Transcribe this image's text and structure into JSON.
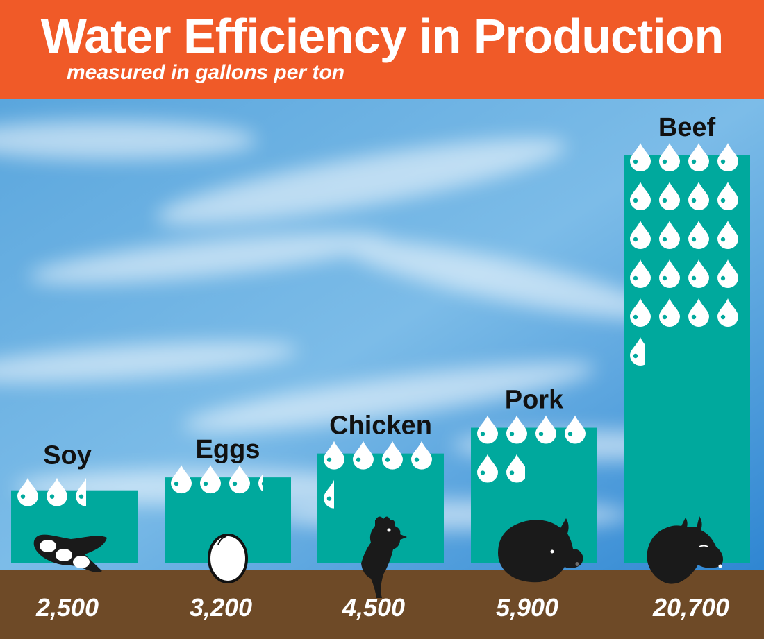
{
  "header": {
    "title": "Water Efficiency in Production",
    "subtitle": "measured in gallons per ton"
  },
  "colors": {
    "header_bg": "#f05a28",
    "bar": "#00a99d",
    "ground": "#6e4a27",
    "drop": "#ffffff",
    "drop_dot": "#00a99d",
    "label_text": "#111111",
    "value_text": "#ffffff"
  },
  "chart_data": {
    "type": "bar",
    "title": "Water Efficiency in Production",
    "subtitle": "measured in gallons per ton",
    "categories": [
      "Soy",
      "Eggs",
      "Chicken",
      "Pork",
      "Beef"
    ],
    "values": [
      2500,
      3200,
      4500,
      5900,
      20700
    ],
    "value_labels": [
      "2,500",
      "3,200",
      "4,500",
      "5,900",
      "20,700"
    ],
    "unit": "gallons per ton",
    "drop_unit_gallons": 1000,
    "icons": [
      "soybean-icon",
      "egg-icon",
      "chicken-icon",
      "pig-icon",
      "cow-icon"
    ],
    "legend": "none",
    "grid": false
  }
}
